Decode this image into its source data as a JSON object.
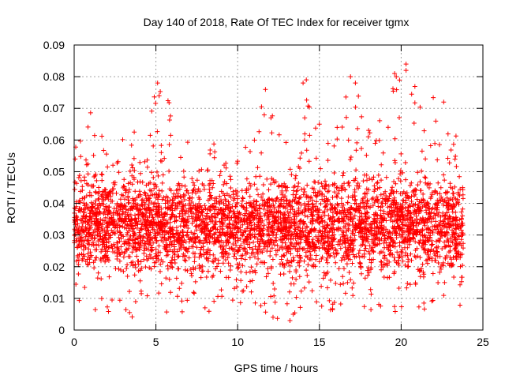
{
  "chart_data": {
    "type": "scatter",
    "title": "Day 140 of 2018, Rate Of TEC Index for receiver tgmx",
    "xlabel": "GPS time / hours",
    "ylabel": "ROTI / TECUs",
    "xlim": [
      0,
      25
    ],
    "ylim": [
      0,
      0.09
    ],
    "x_ticks": [
      0,
      5,
      10,
      15,
      20,
      25
    ],
    "y_ticks": [
      0,
      0.01,
      0.02,
      0.03,
      0.04,
      0.05,
      0.06,
      0.07,
      0.08,
      0.09
    ],
    "x_tick_labels": [
      "0",
      "5",
      "10",
      "15",
      "20",
      "25"
    ],
    "y_tick_labels": [
      "0",
      "0.01",
      "0.02",
      "0.03",
      "0.04",
      "0.05",
      "0.06",
      "0.07",
      "0.08",
      "0.09"
    ],
    "grid": true,
    "marker": "+",
    "marker_color": "#ff0000",
    "series": [
      {
        "name": "ROTI",
        "data_range_x": [
          0,
          23.8
        ],
        "typical_range_y": [
          0.005,
          0.06
        ],
        "envelope": [
          {
            "x": 0.0,
            "min": 0.006,
            "max": 0.063
          },
          {
            "x": 0.8,
            "min": 0.006,
            "max": 0.071
          },
          {
            "x": 2.0,
            "min": 0.006,
            "max": 0.058
          },
          {
            "x": 3.5,
            "min": 0.004,
            "max": 0.062
          },
          {
            "x": 5.2,
            "min": 0.006,
            "max": 0.078
          },
          {
            "x": 6.5,
            "min": 0.005,
            "max": 0.065
          },
          {
            "x": 8.0,
            "min": 0.005,
            "max": 0.06
          },
          {
            "x": 10.0,
            "min": 0.006,
            "max": 0.056
          },
          {
            "x": 11.5,
            "min": 0.005,
            "max": 0.076
          },
          {
            "x": 13.2,
            "min": 0.002,
            "max": 0.062
          },
          {
            "x": 14.2,
            "min": 0.005,
            "max": 0.079
          },
          {
            "x": 16.0,
            "min": 0.006,
            "max": 0.065
          },
          {
            "x": 16.8,
            "min": 0.007,
            "max": 0.08
          },
          {
            "x": 18.5,
            "min": 0.006,
            "max": 0.066
          },
          {
            "x": 19.7,
            "min": 0.005,
            "max": 0.081
          },
          {
            "x": 20.3,
            "min": 0.007,
            "max": 0.084
          },
          {
            "x": 22.5,
            "min": 0.004,
            "max": 0.072
          },
          {
            "x": 23.8,
            "min": 0.006,
            "max": 0.056
          }
        ],
        "outliers": [
          {
            "x": 5.1,
            "y": 0.078
          },
          {
            "x": 5.2,
            "y": 0.074
          },
          {
            "x": 11.7,
            "y": 0.076
          },
          {
            "x": 14.0,
            "y": 0.078
          },
          {
            "x": 14.2,
            "y": 0.079
          },
          {
            "x": 14.1,
            "y": 0.067
          },
          {
            "x": 16.9,
            "y": 0.08
          },
          {
            "x": 17.2,
            "y": 0.078
          },
          {
            "x": 19.6,
            "y": 0.081
          },
          {
            "x": 19.7,
            "y": 0.08
          },
          {
            "x": 20.3,
            "y": 0.084
          },
          {
            "x": 20.3,
            "y": 0.082
          },
          {
            "x": 22.6,
            "y": 0.072
          },
          {
            "x": 13.2,
            "y": 0.003
          }
        ]
      }
    ]
  }
}
